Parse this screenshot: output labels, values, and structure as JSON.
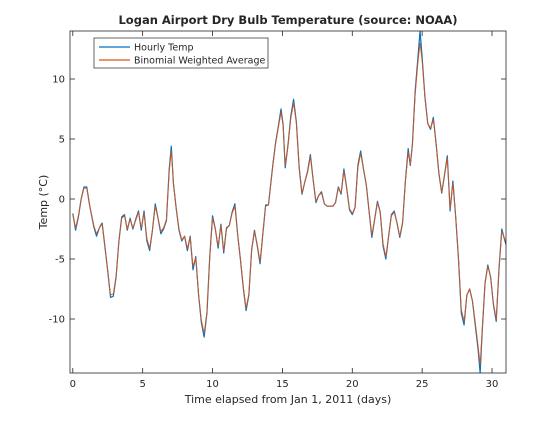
{
  "chart_data": {
    "type": "line",
    "title": "Logan Airport Dry Bulb Temperature (source: NOAA)",
    "xlabel": "Time elapsed from Jan 1, 2011 (days)",
    "ylabel": "Temp (°C)",
    "xlim": [
      -0.2,
      31
    ],
    "ylim": [
      -14.5,
      14
    ],
    "xticks": [
      0,
      5,
      10,
      15,
      20,
      25,
      30
    ],
    "yticks": [
      -10,
      -5,
      0,
      5,
      10
    ],
    "grid": false,
    "legend_position": "top-left",
    "series": [
      {
        "name": "Hourly Temp",
        "color": "#0072BD",
        "points": [
          [
            0.0,
            -1.2
          ],
          [
            0.2,
            -2.6
          ],
          [
            0.4,
            -1.5
          ],
          [
            0.6,
            0.0
          ],
          [
            0.8,
            1.0
          ],
          [
            1.0,
            1.0
          ],
          [
            1.2,
            -0.5
          ],
          [
            1.5,
            -2.3
          ],
          [
            1.7,
            -3.1
          ],
          [
            1.9,
            -2.4
          ],
          [
            2.1,
            -2.0
          ],
          [
            2.3,
            -4.0
          ],
          [
            2.5,
            -6.0
          ],
          [
            2.7,
            -8.2
          ],
          [
            2.9,
            -8.1
          ],
          [
            3.1,
            -6.5
          ],
          [
            3.3,
            -3.5
          ],
          [
            3.5,
            -1.5
          ],
          [
            3.7,
            -1.3
          ],
          [
            3.9,
            -2.6
          ],
          [
            4.1,
            -1.6
          ],
          [
            4.3,
            -2.5
          ],
          [
            4.5,
            -1.7
          ],
          [
            4.7,
            -1.0
          ],
          [
            4.9,
            -2.6
          ],
          [
            5.1,
            -1.0
          ],
          [
            5.3,
            -3.5
          ],
          [
            5.5,
            -4.3
          ],
          [
            5.7,
            -2.6
          ],
          [
            5.9,
            -0.4
          ],
          [
            6.1,
            -1.6
          ],
          [
            6.3,
            -2.9
          ],
          [
            6.5,
            -2.5
          ],
          [
            6.7,
            -1.8
          ],
          [
            6.9,
            2.5
          ],
          [
            7.05,
            4.4
          ],
          [
            7.2,
            1.3
          ],
          [
            7.4,
            -0.8
          ],
          [
            7.6,
            -2.6
          ],
          [
            7.8,
            -3.5
          ],
          [
            8.0,
            -3.1
          ],
          [
            8.2,
            -4.3
          ],
          [
            8.4,
            -3.1
          ],
          [
            8.6,
            -5.9
          ],
          [
            8.8,
            -4.8
          ],
          [
            9.0,
            -8.0
          ],
          [
            9.2,
            -10.3
          ],
          [
            9.4,
            -11.5
          ],
          [
            9.6,
            -9.5
          ],
          [
            9.8,
            -4.8
          ],
          [
            10.0,
            -1.4
          ],
          [
            10.2,
            -2.5
          ],
          [
            10.4,
            -4.1
          ],
          [
            10.6,
            -2.1
          ],
          [
            10.8,
            -4.5
          ],
          [
            11.0,
            -2.4
          ],
          [
            11.2,
            -2.2
          ],
          [
            11.4,
            -1.1
          ],
          [
            11.6,
            -0.4
          ],
          [
            11.8,
            -3.0
          ],
          [
            12.0,
            -5.1
          ],
          [
            12.2,
            -7.4
          ],
          [
            12.4,
            -9.3
          ],
          [
            12.6,
            -8.0
          ],
          [
            12.8,
            -4.2
          ],
          [
            13.0,
            -2.6
          ],
          [
            13.2,
            -3.9
          ],
          [
            13.4,
            -5.4
          ],
          [
            13.6,
            -2.9
          ],
          [
            13.8,
            -0.5
          ],
          [
            14.0,
            -0.5
          ],
          [
            14.3,
            2.7
          ],
          [
            14.5,
            4.6
          ],
          [
            14.7,
            6.0
          ],
          [
            14.9,
            7.5
          ],
          [
            15.05,
            6.2
          ],
          [
            15.2,
            2.6
          ],
          [
            15.4,
            4.5
          ],
          [
            15.6,
            6.9
          ],
          [
            15.8,
            8.3
          ],
          [
            16.0,
            6.4
          ],
          [
            16.2,
            2.6
          ],
          [
            16.4,
            0.4
          ],
          [
            16.6,
            1.4
          ],
          [
            16.8,
            2.3
          ],
          [
            17.0,
            3.7
          ],
          [
            17.2,
            1.6
          ],
          [
            17.4,
            -0.3
          ],
          [
            17.6,
            0.3
          ],
          [
            17.8,
            0.6
          ],
          [
            18.0,
            -0.4
          ],
          [
            18.2,
            -0.6
          ],
          [
            18.4,
            -0.6
          ],
          [
            18.6,
            -0.6
          ],
          [
            18.8,
            -0.3
          ],
          [
            19.0,
            1.0
          ],
          [
            19.2,
            0.4
          ],
          [
            19.4,
            2.5
          ],
          [
            19.6,
            0.9
          ],
          [
            19.8,
            -0.9
          ],
          [
            20.0,
            -1.3
          ],
          [
            20.2,
            -0.7
          ],
          [
            20.4,
            2.8
          ],
          [
            20.6,
            4.0
          ],
          [
            20.8,
            2.5
          ],
          [
            21.0,
            1.2
          ],
          [
            21.2,
            -1.0
          ],
          [
            21.4,
            -3.2
          ],
          [
            21.6,
            -1.7
          ],
          [
            21.8,
            -0.2
          ],
          [
            22.0,
            -1.1
          ],
          [
            22.2,
            -3.9
          ],
          [
            22.4,
            -5.0
          ],
          [
            22.6,
            -3.1
          ],
          [
            22.8,
            -1.3
          ],
          [
            23.0,
            -1.0
          ],
          [
            23.2,
            -2.0
          ],
          [
            23.4,
            -3.2
          ],
          [
            23.6,
            -2.0
          ],
          [
            23.8,
            1.5
          ],
          [
            24.0,
            4.2
          ],
          [
            24.15,
            2.8
          ],
          [
            24.3,
            4.5
          ],
          [
            24.5,
            9.0
          ],
          [
            24.7,
            11.8
          ],
          [
            24.85,
            14.0
          ],
          [
            25.0,
            11.8
          ],
          [
            25.2,
            8.5
          ],
          [
            25.4,
            6.3
          ],
          [
            25.6,
            5.8
          ],
          [
            25.8,
            6.8
          ],
          [
            26.0,
            4.6
          ],
          [
            26.2,
            2.1
          ],
          [
            26.4,
            0.5
          ],
          [
            26.6,
            2.0
          ],
          [
            26.8,
            3.6
          ],
          [
            27.0,
            -1.0
          ],
          [
            27.2,
            1.5
          ],
          [
            27.4,
            -1.5
          ],
          [
            27.6,
            -5.0
          ],
          [
            27.8,
            -9.5
          ],
          [
            28.0,
            -10.5
          ],
          [
            28.2,
            -8.0
          ],
          [
            28.4,
            -7.5
          ],
          [
            28.6,
            -8.5
          ],
          [
            28.8,
            -10.5
          ],
          [
            29.0,
            -12.5
          ],
          [
            29.15,
            -14.5
          ],
          [
            29.3,
            -11.0
          ],
          [
            29.5,
            -7.0
          ],
          [
            29.7,
            -5.5
          ],
          [
            29.9,
            -6.5
          ],
          [
            30.1,
            -8.8
          ],
          [
            30.3,
            -10.2
          ],
          [
            30.5,
            -5.8
          ],
          [
            30.7,
            -2.5
          ],
          [
            30.9,
            -3.4
          ],
          [
            31.0,
            -3.8
          ]
        ]
      },
      {
        "name": "Binomial Weighted Average",
        "color": "#D95319",
        "points": [
          [
            0.0,
            -1.3
          ],
          [
            0.2,
            -2.4
          ],
          [
            0.4,
            -1.4
          ],
          [
            0.6,
            0.0
          ],
          [
            0.8,
            0.9
          ],
          [
            1.0,
            0.9
          ],
          [
            1.2,
            -0.5
          ],
          [
            1.5,
            -2.2
          ],
          [
            1.7,
            -2.9
          ],
          [
            1.9,
            -2.4
          ],
          [
            2.1,
            -2.1
          ],
          [
            2.3,
            -3.9
          ],
          [
            2.5,
            -6.0
          ],
          [
            2.7,
            -8.0
          ],
          [
            2.9,
            -7.9
          ],
          [
            3.1,
            -6.4
          ],
          [
            3.3,
            -3.5
          ],
          [
            3.5,
            -1.6
          ],
          [
            3.7,
            -1.4
          ],
          [
            3.9,
            -2.5
          ],
          [
            4.1,
            -1.7
          ],
          [
            4.3,
            -2.4
          ],
          [
            4.5,
            -1.8
          ],
          [
            4.7,
            -1.1
          ],
          [
            4.9,
            -2.4
          ],
          [
            5.1,
            -1.2
          ],
          [
            5.3,
            -3.3
          ],
          [
            5.5,
            -4.1
          ],
          [
            5.7,
            -2.6
          ],
          [
            5.9,
            -0.6
          ],
          [
            6.1,
            -1.6
          ],
          [
            6.3,
            -2.7
          ],
          [
            6.5,
            -2.4
          ],
          [
            6.7,
            -1.7
          ],
          [
            6.9,
            2.3
          ],
          [
            7.05,
            4.0
          ],
          [
            7.2,
            1.4
          ],
          [
            7.4,
            -0.8
          ],
          [
            7.6,
            -2.5
          ],
          [
            7.8,
            -3.4
          ],
          [
            8.0,
            -3.1
          ],
          [
            8.2,
            -4.1
          ],
          [
            8.4,
            -3.2
          ],
          [
            8.6,
            -5.6
          ],
          [
            8.8,
            -4.9
          ],
          [
            9.0,
            -7.9
          ],
          [
            9.2,
            -10.1
          ],
          [
            9.4,
            -11.2
          ],
          [
            9.6,
            -9.4
          ],
          [
            9.8,
            -4.9
          ],
          [
            10.0,
            -1.6
          ],
          [
            10.2,
            -2.5
          ],
          [
            10.4,
            -3.9
          ],
          [
            10.6,
            -2.2
          ],
          [
            10.8,
            -4.3
          ],
          [
            11.0,
            -2.5
          ],
          [
            11.2,
            -2.2
          ],
          [
            11.4,
            -1.2
          ],
          [
            11.6,
            -0.6
          ],
          [
            11.8,
            -3.0
          ],
          [
            12.0,
            -5.0
          ],
          [
            12.2,
            -7.3
          ],
          [
            12.4,
            -9.1
          ],
          [
            12.6,
            -7.9
          ],
          [
            12.8,
            -4.3
          ],
          [
            13.0,
            -2.7
          ],
          [
            13.2,
            -3.8
          ],
          [
            13.4,
            -5.2
          ],
          [
            13.6,
            -2.9
          ],
          [
            13.8,
            -0.6
          ],
          [
            14.0,
            -0.5
          ],
          [
            14.3,
            2.6
          ],
          [
            14.5,
            4.5
          ],
          [
            14.7,
            5.9
          ],
          [
            14.9,
            7.2
          ],
          [
            15.05,
            6.1
          ],
          [
            15.2,
            2.8
          ],
          [
            15.4,
            4.4
          ],
          [
            15.6,
            6.7
          ],
          [
            15.8,
            8.0
          ],
          [
            16.0,
            6.3
          ],
          [
            16.2,
            2.7
          ],
          [
            16.4,
            0.5
          ],
          [
            16.6,
            1.4
          ],
          [
            16.8,
            2.2
          ],
          [
            17.0,
            3.5
          ],
          [
            17.2,
            1.6
          ],
          [
            17.4,
            -0.2
          ],
          [
            17.6,
            0.3
          ],
          [
            17.8,
            0.5
          ],
          [
            18.0,
            -0.4
          ],
          [
            18.2,
            -0.6
          ],
          [
            18.4,
            -0.6
          ],
          [
            18.6,
            -0.6
          ],
          [
            18.8,
            -0.3
          ],
          [
            19.0,
            0.9
          ],
          [
            19.2,
            0.5
          ],
          [
            19.4,
            2.3
          ],
          [
            19.6,
            0.9
          ],
          [
            19.8,
            -0.8
          ],
          [
            20.0,
            -1.2
          ],
          [
            20.2,
            -0.7
          ],
          [
            20.4,
            2.6
          ],
          [
            20.6,
            3.8
          ],
          [
            20.8,
            2.5
          ],
          [
            21.0,
            1.2
          ],
          [
            21.2,
            -1.0
          ],
          [
            21.4,
            -3.0
          ],
          [
            21.6,
            -1.7
          ],
          [
            21.8,
            -0.3
          ],
          [
            22.0,
            -1.1
          ],
          [
            22.2,
            -3.7
          ],
          [
            22.4,
            -4.8
          ],
          [
            22.6,
            -3.1
          ],
          [
            22.8,
            -1.4
          ],
          [
            23.0,
            -1.1
          ],
          [
            23.2,
            -2.0
          ],
          [
            23.4,
            -3.1
          ],
          [
            23.6,
            -1.9
          ],
          [
            23.8,
            1.4
          ],
          [
            24.0,
            3.9
          ],
          [
            24.15,
            2.9
          ],
          [
            24.3,
            4.5
          ],
          [
            24.5,
            8.7
          ],
          [
            24.7,
            11.4
          ],
          [
            24.85,
            13.0
          ],
          [
            25.0,
            11.5
          ],
          [
            25.2,
            8.4
          ],
          [
            25.4,
            6.3
          ],
          [
            25.6,
            5.9
          ],
          [
            25.8,
            6.6
          ],
          [
            26.0,
            4.6
          ],
          [
            26.2,
            2.2
          ],
          [
            26.4,
            0.6
          ],
          [
            26.6,
            2.0
          ],
          [
            26.8,
            3.4
          ],
          [
            27.0,
            -0.8
          ],
          [
            27.2,
            1.3
          ],
          [
            27.4,
            -1.5
          ],
          [
            27.6,
            -4.9
          ],
          [
            27.8,
            -9.2
          ],
          [
            28.0,
            -10.2
          ],
          [
            28.2,
            -8.0
          ],
          [
            28.4,
            -7.5
          ],
          [
            28.6,
            -8.5
          ],
          [
            28.8,
            -10.3
          ],
          [
            29.0,
            -12.2
          ],
          [
            29.15,
            -13.8
          ],
          [
            29.3,
            -10.8
          ],
          [
            29.5,
            -7.0
          ],
          [
            29.7,
            -5.6
          ],
          [
            29.9,
            -6.5
          ],
          [
            30.1,
            -8.7
          ],
          [
            30.3,
            -10.0
          ],
          [
            30.5,
            -5.9
          ],
          [
            30.7,
            -2.7
          ],
          [
            30.9,
            -3.3
          ],
          [
            31.0,
            -3.6
          ]
        ]
      }
    ]
  }
}
